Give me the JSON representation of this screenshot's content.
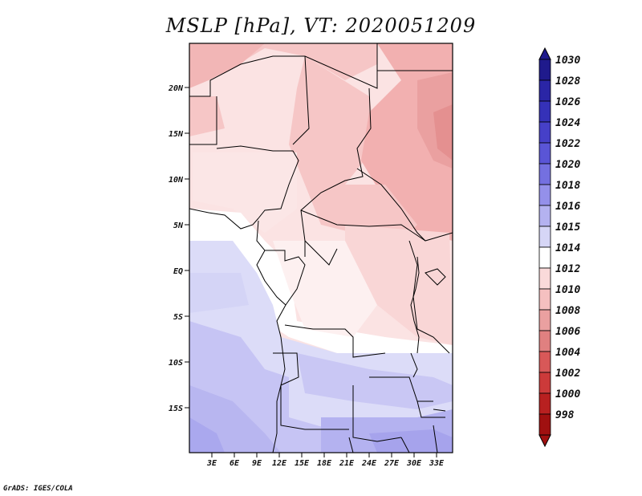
{
  "title": "MSLP [hPa], VT: 2020051209",
  "credit": "GrADS: IGES/COLA",
  "lat_labels": [
    "20N",
    "15N",
    "10N",
    "5N",
    "EQ",
    "5S",
    "10S",
    "15S"
  ],
  "lon_labels": [
    "3E",
    "6E",
    "9E",
    "12E",
    "15E",
    "18E",
    "21E",
    "24E",
    "27E",
    "30E",
    "33E"
  ],
  "colorbar": {
    "levels": [
      "1030",
      "1028",
      "1026",
      "1024",
      "1022",
      "1020",
      "1018",
      "1016",
      "1015",
      "1014",
      "1012",
      "1010",
      "1008",
      "1006",
      "1004",
      "1002",
      "1000",
      "998"
    ],
    "colors": [
      "#1f1a8c",
      "#2a25a6",
      "#3531b8",
      "#4640c8",
      "#5a55d6",
      "#7470e0",
      "#9490ea",
      "#b4b2f0",
      "#d6d6f6",
      "#ffffff",
      "#fadada",
      "#f5c0c0",
      "#eaa0a0",
      "#e08080",
      "#d85858",
      "#cc3a3a",
      "#b82020",
      "#a01010"
    ]
  },
  "colors": {
    "frame": "#000000",
    "border": "#000000"
  }
}
